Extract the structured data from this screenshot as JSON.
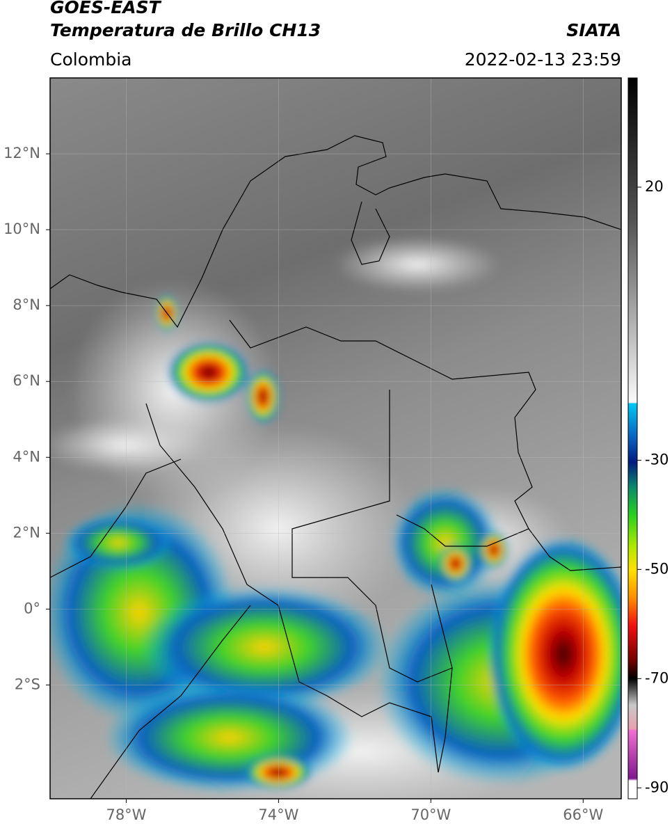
{
  "header": {
    "title": "GOES-EAST",
    "subtitle": "Temperatura de Brillo CH13",
    "source": "SIATA",
    "region": "Colombia",
    "timestamp": "2022-02-13 23:59"
  },
  "map": {
    "xlim": [
      -80,
      -65
    ],
    "ylim": [
      -5,
      14
    ],
    "xticks": [
      {
        "value": -78,
        "label": "78°W"
      },
      {
        "value": -74,
        "label": "74°W"
      },
      {
        "value": -70,
        "label": "70°W"
      },
      {
        "value": -66,
        "label": "66°W"
      }
    ],
    "yticks": [
      {
        "value": 12,
        "label": "12°N"
      },
      {
        "value": 10,
        "label": "10°N"
      },
      {
        "value": 8,
        "label": "8°N"
      },
      {
        "value": 6,
        "label": "6°N"
      },
      {
        "value": 4,
        "label": "4°N"
      },
      {
        "value": 2,
        "label": "2°N"
      },
      {
        "value": 0,
        "label": "0°"
      },
      {
        "value": -2,
        "label": "2°S"
      }
    ]
  },
  "colorbar": {
    "lim": [
      -92,
      40
    ],
    "ticks": [
      20,
      -30,
      -50,
      -70,
      -90
    ]
  }
}
